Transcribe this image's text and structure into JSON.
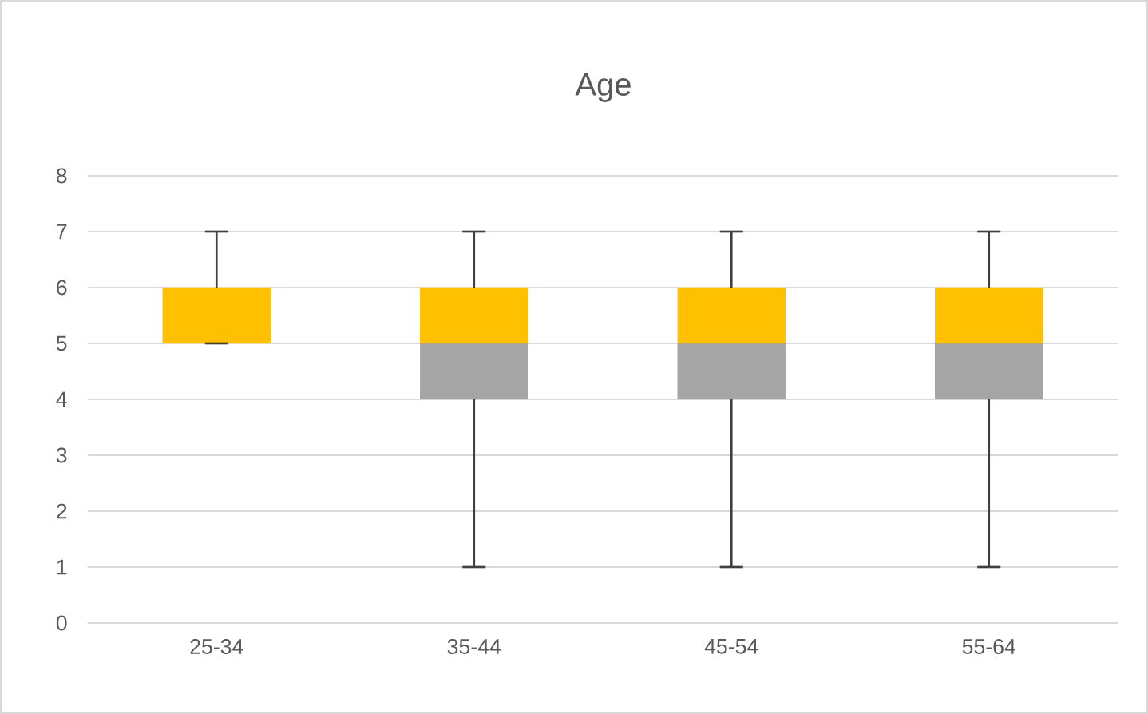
{
  "chart_data": {
    "type": "box",
    "title": "Age",
    "categories": [
      "25-34",
      "35-44",
      "45-54",
      "55-64"
    ],
    "boxes": [
      {
        "low": 5,
        "q1": 5,
        "median": 5,
        "q3": 6,
        "high": 7
      },
      {
        "low": 1,
        "q1": 4,
        "median": 5,
        "q3": 6,
        "high": 7
      },
      {
        "low": 1,
        "q1": 4,
        "median": 5,
        "q3": 6,
        "high": 7
      },
      {
        "low": 1,
        "q1": 4,
        "median": 5,
        "q3": 6,
        "high": 7
      }
    ],
    "colors": [
      [
        "#a5a5a5",
        "#ffc000"
      ],
      [
        "#a5a5a5",
        "#ffc000"
      ],
      [
        "#a5a5a5",
        "#ffc000"
      ],
      [
        "#a5a5a5",
        "#ffc000"
      ]
    ],
    "ylim": [
      0,
      8
    ],
    "yticks": [
      0,
      1,
      2,
      3,
      4,
      5,
      6,
      7,
      8
    ],
    "grid": "y"
  }
}
